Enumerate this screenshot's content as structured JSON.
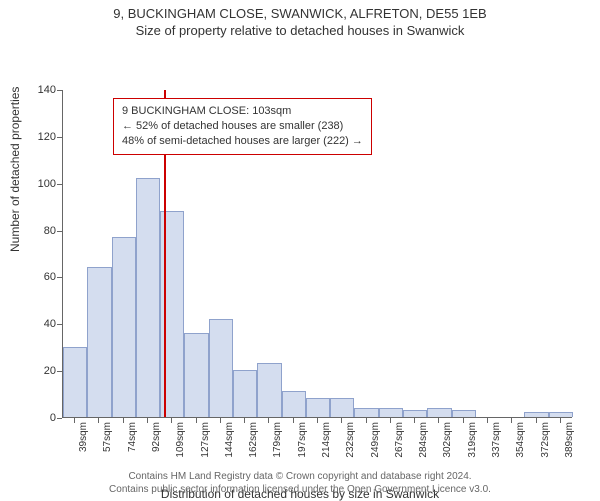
{
  "title_main": "9, BUCKINGHAM CLOSE, SWANWICK, ALFRETON, DE55 1EB",
  "title_sub": "Size of property relative to detached houses in Swanwick",
  "axis": {
    "ylabel": "Number of detached properties",
    "xlabel": "Distribution of detached houses by size in Swanwick",
    "ymax": 140,
    "ytick_step": 20,
    "ytick_fontsize": 11,
    "xtick_fontsize": 10,
    "label_fontsize": 12
  },
  "bars": {
    "fill": "#d4ddef",
    "stroke": "#8fa2cc",
    "stroke_width": 1,
    "labels": [
      "39sqm",
      "57sqm",
      "74sqm",
      "92sqm",
      "109sqm",
      "127sqm",
      "144sqm",
      "162sqm",
      "179sqm",
      "197sqm",
      "214sqm",
      "232sqm",
      "249sqm",
      "267sqm",
      "284sqm",
      "302sqm",
      "319sqm",
      "337sqm",
      "354sqm",
      "372sqm",
      "389sqm"
    ],
    "values": [
      30,
      64,
      77,
      102,
      88,
      36,
      42,
      20,
      23,
      11,
      8,
      8,
      4,
      4,
      3,
      4,
      3,
      0,
      0,
      2,
      2
    ]
  },
  "marker": {
    "color": "#cc0000",
    "position_index": 3.67
  },
  "info_box": {
    "border_color": "#cc0000",
    "lines": [
      "9 BUCKINGHAM CLOSE: 103sqm",
      "← 52% of detached houses are smaller (238)",
      "48% of semi-detached houses are larger (222) →"
    ]
  },
  "footer": {
    "line1": "Contains HM Land Registry data © Crown copyright and database right 2024.",
    "line2": "Contains public sector information licensed under the Open Government Licence v3.0."
  },
  "colors": {
    "background": "#ffffff",
    "text": "#333333",
    "axis_line": "#666666",
    "footer_text": "#666666"
  }
}
